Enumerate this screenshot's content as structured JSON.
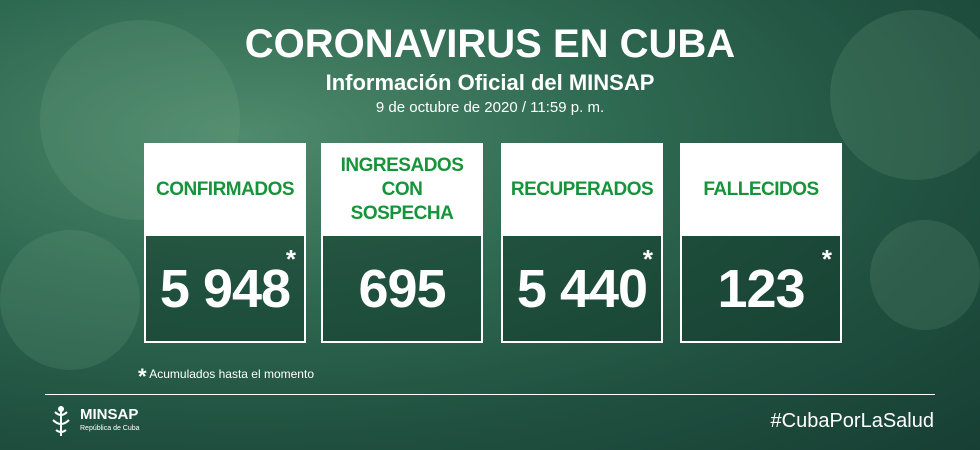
{
  "header": {
    "title": "CORONAVIRUS EN CUBA",
    "subtitle": "Información Oficial del MINSAP",
    "date": "9 de octubre de 2020 / 11:59 p. m."
  },
  "cards": [
    {
      "label": "CONFIRMADOS",
      "value": "5 948",
      "mark": "*"
    },
    {
      "label": "INGRESADOS CON SOSPECHA",
      "value": "695"
    },
    {
      "label": "RECUPERADOS",
      "value": "5 440",
      "mark": "*"
    },
    {
      "label": "FALLECIDOS",
      "value": "123",
      "mark": "*"
    }
  ],
  "footnote": {
    "mark": "*",
    "text": "Acumulados hasta el momento"
  },
  "footer": {
    "logo": "MINSAP",
    "logo_sub": "República de Cuba",
    "hashtag": "#CubaPorLaSalud"
  }
}
